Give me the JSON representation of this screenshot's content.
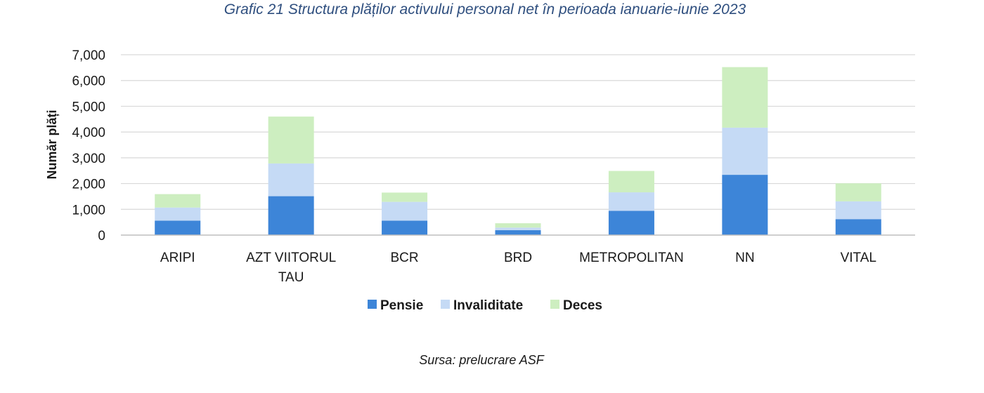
{
  "title": "Grafic 21 Structura plăților activului personal net în perioada ianuarie-iunie 2023",
  "source": "Sursa: prelucrare ASF",
  "colors": {
    "Pensie": "#3d85d8",
    "Invaliditate": "#c5daf5",
    "Deces": "#cdeec0",
    "grid": "#d9d9d9",
    "axis": "#bfbfbf"
  },
  "chart_data": {
    "type": "bar",
    "stacked": true,
    "title": "Grafic 21 Structura plăților activului personal net în perioada ianuarie-iunie 2023",
    "xlabel": "",
    "ylabel": "Număr plăți",
    "ylim": [
      0,
      7000
    ],
    "yticks": [
      "0",
      "1,000",
      "2,000",
      "3,000",
      "4,000",
      "5,000",
      "6,000",
      "7,000"
    ],
    "ytick_values": [
      0,
      1000,
      2000,
      3000,
      4000,
      5000,
      6000,
      7000
    ],
    "grid": true,
    "legend_position": "bottom",
    "categories": [
      "ARIPI",
      "AZT VIITORUL TAU",
      "BCR",
      "BRD",
      "METROPOLITAN",
      "NN",
      "VITAL"
    ],
    "category_lines": [
      [
        "ARIPI"
      ],
      [
        "AZT VIITORUL",
        "TAU"
      ],
      [
        "BCR"
      ],
      [
        "BRD"
      ],
      [
        "METROPOLITAN"
      ],
      [
        "NN"
      ],
      [
        "VITAL"
      ]
    ],
    "series": [
      {
        "name": "Pensie",
        "values": [
          560,
          1510,
          560,
          190,
          940,
          2340,
          620
        ]
      },
      {
        "name": "Invaliditate",
        "values": [
          510,
          1270,
          730,
          100,
          720,
          1830,
          690
        ]
      },
      {
        "name": "Deces",
        "values": [
          520,
          1820,
          360,
          170,
          830,
          2350,
          700
        ]
      }
    ]
  }
}
